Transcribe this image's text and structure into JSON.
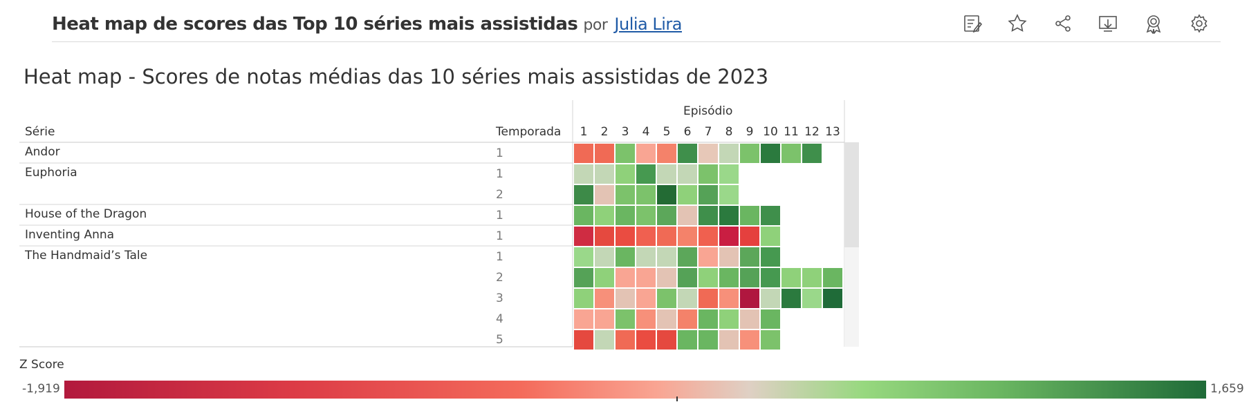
{
  "header": {
    "title": "Heat map de scores das Top 10 séries mais assistidas",
    "por": "por",
    "author": "Julia Lira",
    "toolbar": [
      "edit-icon",
      "star-icon",
      "share-icon",
      "download-icon",
      "badge-icon",
      "gear-icon"
    ]
  },
  "viz": {
    "title": "Heat map - Scores de notas médias das 10 séries mais assistidas de 2023",
    "col_serie": "Série",
    "col_temporada": "Temporada",
    "col_episodio": "Episódio",
    "episodes": [
      "1",
      "2",
      "3",
      "4",
      "5",
      "6",
      "7",
      "8",
      "9",
      "10",
      "11",
      "12",
      "13"
    ]
  },
  "chart_data": {
    "type": "heatmap",
    "title": "Heat map - Scores de notas médias das 10 séries mais assistidas de 2023",
    "xlabel": "Episódio",
    "rows": [
      {
        "serie": "Andor",
        "season": "1",
        "colors": [
          "#f06a55",
          "#f06a55",
          "#7cc26b",
          "#f9a593",
          "#f4826a",
          "#3f8f4b",
          "#e7c8b8",
          "#c3d7b6",
          "#7cc26b",
          "#2b7a3e",
          "#7cc26b",
          "#3f8f4b"
        ]
      },
      {
        "serie": "Euphoria",
        "season": "1",
        "colors": [
          "#c3d7b6",
          "#c3d7b6",
          "#8fd17a",
          "#469950",
          "#c3d7b6",
          "#c3d7b6",
          "#7cc26b",
          "#9ad88a"
        ]
      },
      {
        "serie": "",
        "season": "2",
        "colors": [
          "#3d8a48",
          "#e3c3b4",
          "#7cc26b",
          "#7cc26b",
          "#236b34",
          "#8fd17a",
          "#55a257",
          "#9ad88a"
        ]
      },
      {
        "serie": "House of the Dragon",
        "season": "1",
        "colors": [
          "#6ab661",
          "#8fd17a",
          "#6ab661",
          "#7cc26b",
          "#5ca75a",
          "#e3c3b4",
          "#3f8f4b",
          "#2b7a3e",
          "#6ab661",
          "#3f8f4b"
        ]
      },
      {
        "serie": "Inventing Anna",
        "season": "1",
        "colors": [
          "#cf2c42",
          "#e5493f",
          "#ea4c41",
          "#f06050",
          "#f06a55",
          "#f4826a",
          "#f0604f",
          "#c91e42",
          "#e5403e",
          "#8fd17a"
        ]
      },
      {
        "serie": "The Handmaid’s Tale",
        "season": "1",
        "colors": [
          "#9ad88a",
          "#c3d7b6",
          "#6ab661",
          "#c3d7b6",
          "#c3d7b6",
          "#5ca75a",
          "#f9a593",
          "#e3c3b4",
          "#5ca75a",
          "#469950"
        ]
      },
      {
        "serie": "",
        "season": "2",
        "colors": [
          "#55a257",
          "#8fd17a",
          "#f9a593",
          "#f9a593",
          "#e3c3b4",
          "#55a257",
          "#8fd17a",
          "#6ab661",
          "#55a257",
          "#469950",
          "#8fd17a",
          "#8fd17a",
          "#6ab661"
        ]
      },
      {
        "serie": "",
        "season": "3",
        "colors": [
          "#8fd17a",
          "#f7907a",
          "#e3c3b4",
          "#f9a593",
          "#7cc26b",
          "#c3d7b6",
          "#f06a55",
          "#f7907a",
          "#b0173f",
          "#c3d7b6",
          "#2b7a3e",
          "#9ad88a",
          "#1f6b38"
        ]
      },
      {
        "serie": "",
        "season": "4",
        "colors": [
          "#f9a593",
          "#f9a593",
          "#7cc26b",
          "#f7907a",
          "#e3c3b4",
          "#f4826a",
          "#6ab661",
          "#8fd17a",
          "#e3c3b4",
          "#6ab661"
        ]
      },
      {
        "serie": "",
        "season": "5",
        "colors": [
          "#e5493f",
          "#c3d7b6",
          "#f06a55",
          "#ea4c41",
          "#e5493f",
          "#6ab661",
          "#6ab661",
          "#e3c3b4",
          "#f7907a",
          "#7cc26b"
        ]
      }
    ],
    "legend": {
      "title": "Z Score",
      "min": "-1,919",
      "max": "1,659"
    }
  }
}
